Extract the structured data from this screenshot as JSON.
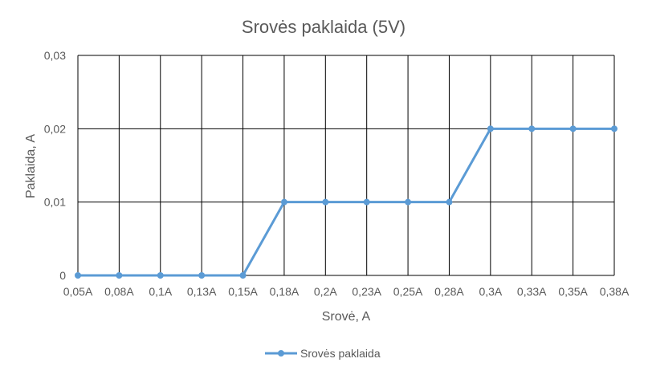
{
  "chart_data": {
    "type": "line",
    "title": "Srovės paklaida (5V)",
    "xlabel": "Srovė, A",
    "ylabel": "Paklaida, A",
    "categories": [
      "0,05A",
      "0,08A",
      "0,1A",
      "0,13A",
      "0,15A",
      "0,18A",
      "0,2A",
      "0,23A",
      "0,25A",
      "0,28A",
      "0,3A",
      "0,33A",
      "0,35A",
      "0,38A"
    ],
    "series": [
      {
        "name": "Srovės paklaida",
        "values": [
          0,
          0,
          0,
          0,
          0,
          0.01,
          0.01,
          0.01,
          0.01,
          0.01,
          0.02,
          0.02,
          0.02,
          0.02
        ]
      }
    ],
    "ylim": [
      0,
      0.03
    ],
    "yticks": [
      0,
      0.01,
      0.02,
      0.03
    ],
    "ytick_labels": [
      "0",
      "0,01",
      "0,02",
      "0,03"
    ],
    "grid": true,
    "legend_position": "bottom",
    "colors": {
      "series": "#5B9BD5",
      "text": "#595959",
      "grid": "#000000"
    }
  }
}
